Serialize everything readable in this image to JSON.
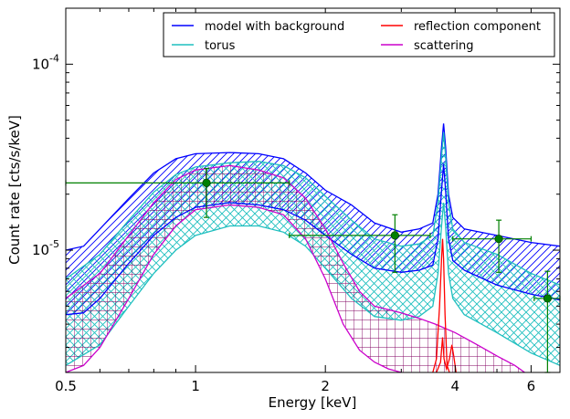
{
  "chart_data": {
    "type": "line",
    "xlabel": "Energy [keV]",
    "ylabel": "Count rate [cts/s/keV]",
    "x_scale": "log",
    "y_scale": "log",
    "xlim": [
      0.5,
      7.0
    ],
    "ylim": [
      2.2e-06,
      0.0002
    ],
    "x_ticks": [
      {
        "value": 0.5,
        "label": "0.5"
      },
      {
        "value": 1,
        "label": "1"
      },
      {
        "value": 2,
        "label": "2"
      },
      {
        "value": 4,
        "label": "4"
      },
      {
        "value": 6,
        "label": "6"
      }
    ],
    "y_ticks": [
      {
        "value": 1e-05,
        "base": "10",
        "exp": "-5"
      },
      {
        "value": 0.0001,
        "base": "10",
        "exp": "-4"
      }
    ],
    "legend_position": "top-right",
    "series": [
      {
        "name": "model with background",
        "color": "#0000ff",
        "hatch": "diagonal",
        "upper": [
          [
            0.5,
            1e-05
          ],
          [
            0.55,
            1.05e-05
          ],
          [
            0.6,
            1.3e-05
          ],
          [
            0.7,
            1.9e-05
          ],
          [
            0.8,
            2.6e-05
          ],
          [
            0.9,
            3.1e-05
          ],
          [
            1.0,
            3.3e-05
          ],
          [
            1.2,
            3.35e-05
          ],
          [
            1.4,
            3.3e-05
          ],
          [
            1.6,
            3.1e-05
          ],
          [
            1.8,
            2.6e-05
          ],
          [
            2.0,
            2.1e-05
          ],
          [
            2.3,
            1.75e-05
          ],
          [
            2.6,
            1.4e-05
          ],
          [
            3.0,
            1.25e-05
          ],
          [
            3.3,
            1.3e-05
          ],
          [
            3.55,
            1.4e-05
          ],
          [
            3.65,
            2e-05
          ],
          [
            3.72,
            3.6e-05
          ],
          [
            3.76,
            4.8e-05
          ],
          [
            3.8,
            3.6e-05
          ],
          [
            3.86,
            2e-05
          ],
          [
            3.95,
            1.5e-05
          ],
          [
            4.2,
            1.3e-05
          ],
          [
            5.0,
            1.2e-05
          ],
          [
            6.0,
            1.1e-05
          ],
          [
            7.0,
            1.05e-05
          ]
        ],
        "lower": [
          [
            0.5,
            4.5e-06
          ],
          [
            0.55,
            4.6e-06
          ],
          [
            0.6,
            5.5e-06
          ],
          [
            0.7,
            8.5e-06
          ],
          [
            0.8,
            1.2e-05
          ],
          [
            0.9,
            1.5e-05
          ],
          [
            1.0,
            1.7e-05
          ],
          [
            1.2,
            1.8e-05
          ],
          [
            1.4,
            1.75e-05
          ],
          [
            1.6,
            1.65e-05
          ],
          [
            1.8,
            1.45e-05
          ],
          [
            2.0,
            1.2e-05
          ],
          [
            2.3,
            9.5e-06
          ],
          [
            2.6,
            8e-06
          ],
          [
            3.0,
            7.6e-06
          ],
          [
            3.3,
            7.8e-06
          ],
          [
            3.55,
            8.3e-06
          ],
          [
            3.65,
            1.15e-05
          ],
          [
            3.72,
            2.1e-05
          ],
          [
            3.76,
            2.9e-05
          ],
          [
            3.8,
            2.1e-05
          ],
          [
            3.86,
            1.15e-05
          ],
          [
            3.95,
            8.8e-06
          ],
          [
            4.2,
            7.8e-06
          ],
          [
            5.0,
            6.5e-06
          ],
          [
            6.0,
            5.8e-06
          ],
          [
            7.0,
            5.4e-06
          ]
        ]
      },
      {
        "name": "torus",
        "color": "#1fbfbf",
        "hatch": "cross",
        "upper": [
          [
            0.5,
            7e-06
          ],
          [
            0.6,
            9.5e-06
          ],
          [
            0.7,
            1.45e-05
          ],
          [
            0.8,
            2.05e-05
          ],
          [
            0.9,
            2.55e-05
          ],
          [
            1.0,
            2.8e-05
          ],
          [
            1.2,
            2.95e-05
          ],
          [
            1.4,
            3e-05
          ],
          [
            1.6,
            2.85e-05
          ],
          [
            1.8,
            2.45e-05
          ],
          [
            2.0,
            1.95e-05
          ],
          [
            2.3,
            1.45e-05
          ],
          [
            2.6,
            1.15e-05
          ],
          [
            3.0,
            1.05e-05
          ],
          [
            3.3,
            1.08e-05
          ],
          [
            3.55,
            1.2e-05
          ],
          [
            3.65,
            1.8e-05
          ],
          [
            3.72,
            3.2e-05
          ],
          [
            3.76,
            4.3e-05
          ],
          [
            3.8,
            3.2e-05
          ],
          [
            3.86,
            1.8e-05
          ],
          [
            3.95,
            1.3e-05
          ],
          [
            4.2,
            1.1e-05
          ],
          [
            5.0,
            9.5e-06
          ],
          [
            6.0,
            7.5e-06
          ],
          [
            7.0,
            6.5e-06
          ]
        ],
        "lower": [
          [
            0.5,
            2.4e-06
          ],
          [
            0.6,
            3.1e-06
          ],
          [
            0.7,
            5e-06
          ],
          [
            0.8,
            7.5e-06
          ],
          [
            0.9,
            1e-05
          ],
          [
            1.0,
            1.2e-05
          ],
          [
            1.2,
            1.35e-05
          ],
          [
            1.4,
            1.35e-05
          ],
          [
            1.6,
            1.25e-05
          ],
          [
            1.8,
            1.05e-05
          ],
          [
            2.0,
            8e-06
          ],
          [
            2.3,
            5.5e-06
          ],
          [
            2.6,
            4.4e-06
          ],
          [
            3.0,
            4.2e-06
          ],
          [
            3.3,
            4.4e-06
          ],
          [
            3.55,
            5e-06
          ],
          [
            3.65,
            7.5e-06
          ],
          [
            3.72,
            1.35e-05
          ],
          [
            3.76,
            1.8e-05
          ],
          [
            3.8,
            1.35e-05
          ],
          [
            3.86,
            7.5e-06
          ],
          [
            3.95,
            5.5e-06
          ],
          [
            4.2,
            4.5e-06
          ],
          [
            5.0,
            3.6e-06
          ],
          [
            6.0,
            2.8e-06
          ],
          [
            7.0,
            2.4e-06
          ]
        ]
      },
      {
        "name": "reflection component",
        "color": "#ff0000",
        "line": [
          [
            3.55,
            2.2e-06
          ],
          [
            3.62,
            2.6e-06
          ],
          [
            3.68,
            5e-06
          ],
          [
            3.72,
            9e-06
          ],
          [
            3.74,
            1.15e-05
          ],
          [
            3.76,
            9e-06
          ],
          [
            3.79,
            4.5e-06
          ],
          [
            3.83,
            2.4e-06
          ],
          [
            3.88,
            2.2e-06
          ]
        ],
        "line2": [
          [
            3.62,
            2.2e-06
          ],
          [
            3.7,
            2.5e-06
          ],
          [
            3.74,
            3.4e-06
          ],
          [
            3.77,
            2.6e-06
          ],
          [
            3.82,
            2.3e-06
          ],
          [
            3.88,
            2.6e-06
          ],
          [
            3.93,
            3.1e-06
          ],
          [
            3.97,
            2.7e-06
          ],
          [
            4.02,
            2.2e-06
          ]
        ]
      },
      {
        "name": "scattering",
        "color": "#cc00cc",
        "hatch": "grid",
        "hatch_color": "#800060",
        "upper": [
          [
            0.5,
            5.5e-06
          ],
          [
            0.6,
            7.5e-06
          ],
          [
            0.7,
            1.2e-05
          ],
          [
            0.8,
            1.8e-05
          ],
          [
            0.9,
            2.4e-05
          ],
          [
            1.0,
            2.7e-05
          ],
          [
            1.2,
            2.85e-05
          ],
          [
            1.4,
            2.7e-05
          ],
          [
            1.6,
            2.45e-05
          ],
          [
            1.8,
            1.9e-05
          ],
          [
            2.0,
            1.3e-05
          ],
          [
            2.2,
            8.5e-06
          ],
          [
            2.4,
            6e-06
          ],
          [
            2.6,
            5e-06
          ],
          [
            3.0,
            4.6e-06
          ],
          [
            3.3,
            4.3e-06
          ],
          [
            3.6,
            4e-06
          ],
          [
            4.0,
            3.6e-06
          ],
          [
            4.5,
            3.1e-06
          ],
          [
            5.0,
            2.7e-06
          ],
          [
            5.5,
            2.4e-06
          ],
          [
            5.8,
            2.2e-06
          ]
        ],
        "lower": [
          [
            0.5,
            2.2e-06
          ],
          [
            0.55,
            2.4e-06
          ],
          [
            0.6,
            3e-06
          ],
          [
            0.7,
            5.5e-06
          ],
          [
            0.8,
            9.5e-06
          ],
          [
            0.9,
            1.35e-05
          ],
          [
            1.0,
            1.65e-05
          ],
          [
            1.2,
            1.75e-05
          ],
          [
            1.4,
            1.7e-05
          ],
          [
            1.6,
            1.55e-05
          ],
          [
            1.8,
            1.15e-05
          ],
          [
            2.0,
            7e-06
          ],
          [
            2.2,
            4e-06
          ],
          [
            2.4,
            2.9e-06
          ],
          [
            2.6,
            2.5e-06
          ],
          [
            2.8,
            2.3e-06
          ],
          [
            3.0,
            2.2e-06
          ]
        ]
      }
    ],
    "data_points": {
      "color": "#008000",
      "points": [
        {
          "x": 1.06,
          "y": 2.3e-05,
          "xerr": [
            0.5,
            1.65
          ],
          "yerr": [
            1.5e-05,
            2.75e-05
          ]
        },
        {
          "x": 2.9,
          "y": 1.2e-05,
          "xerr": [
            1.65,
            3.5
          ],
          "yerr": [
            7.6e-06,
            1.55e-05
          ]
        },
        {
          "x": 5.05,
          "y": 1.15e-05,
          "xerr": [
            3.95,
            6.0
          ],
          "yerr": [
            7.6e-06,
            1.45e-05
          ]
        },
        {
          "x": 6.55,
          "y": 5.5e-06,
          "xerr": [
            6.1,
            7.0
          ],
          "yerr": [
            2.2e-06,
            7.7e-06
          ]
        }
      ]
    }
  }
}
